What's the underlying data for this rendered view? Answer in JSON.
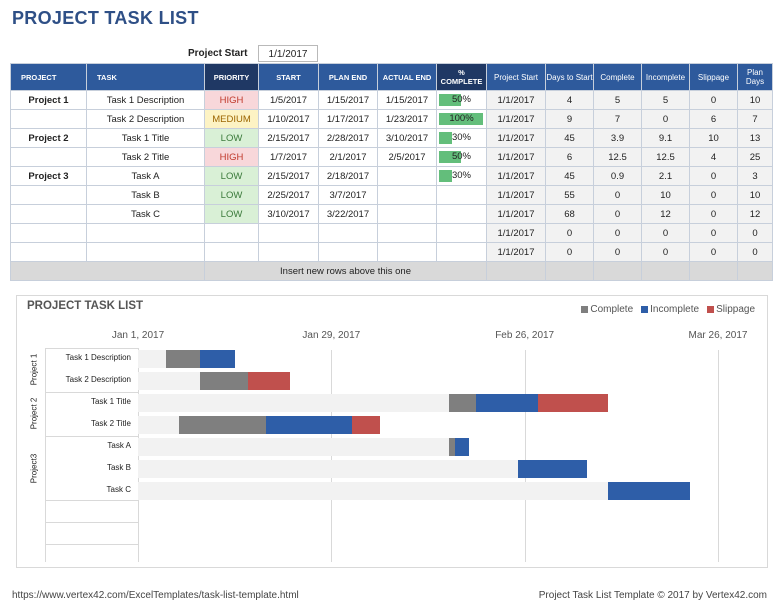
{
  "title": "PROJECT TASK LIST",
  "project_start": {
    "label": "Project Start",
    "value": "1/1/2017"
  },
  "table": {
    "headers": {
      "project": "PROJECT",
      "task": "TASK",
      "priority": "PRIORITY",
      "start": "START",
      "plan_end": "PLAN END",
      "actual_end": "ACTUAL END",
      "complete_pct_top": "%",
      "complete_pct_bottom": "COMPLETE",
      "proj_start": "Project Start",
      "days_to_start": "Days to Start",
      "complete": "Complete",
      "incomplete": "Incomplete",
      "slippage": "Slippage",
      "plan_days": "Plan Days"
    },
    "rows": [
      {
        "project": "Project 1",
        "task": "Task 1 Description",
        "priority": "HIGH",
        "start": "1/5/2017",
        "plan_end": "1/15/2017",
        "actual_end": "1/15/2017",
        "pct": "50%",
        "pct_value": 0.5,
        "proj_start": "1/1/2017",
        "days_to_start": "4",
        "complete": "5",
        "incomplete": "5",
        "slippage": "0",
        "plan_days": "10"
      },
      {
        "project": "",
        "task": "Task 2 Description",
        "priority": "MEDIUM",
        "start": "1/10/2017",
        "plan_end": "1/17/2017",
        "actual_end": "1/23/2017",
        "pct": "100%",
        "pct_value": 1.0,
        "proj_start": "1/1/2017",
        "days_to_start": "9",
        "complete": "7",
        "incomplete": "0",
        "slippage": "6",
        "plan_days": "7"
      },
      {
        "project": "Project 2",
        "task": "Task 1 Title",
        "priority": "LOW",
        "start": "2/15/2017",
        "plan_end": "2/28/2017",
        "actual_end": "3/10/2017",
        "pct": "30%",
        "pct_value": 0.3,
        "proj_start": "1/1/2017",
        "days_to_start": "45",
        "complete": "3.9",
        "incomplete": "9.1",
        "slippage": "10",
        "plan_days": "13"
      },
      {
        "project": "",
        "task": "Task 2 Title",
        "priority": "HIGH",
        "start": "1/7/2017",
        "plan_end": "2/1/2017",
        "actual_end": "2/5/2017",
        "pct": "50%",
        "pct_value": 0.5,
        "proj_start": "1/1/2017",
        "days_to_start": "6",
        "complete": "12.5",
        "incomplete": "12.5",
        "slippage": "4",
        "plan_days": "25"
      },
      {
        "project": "Project 3",
        "task": "Task A",
        "priority": "LOW",
        "start": "2/15/2017",
        "plan_end": "2/18/2017",
        "actual_end": "",
        "pct": "30%",
        "pct_value": 0.3,
        "proj_start": "1/1/2017",
        "days_to_start": "45",
        "complete": "0.9",
        "incomplete": "2.1",
        "slippage": "0",
        "plan_days": "3"
      },
      {
        "project": "",
        "task": "Task B",
        "priority": "LOW",
        "start": "2/25/2017",
        "plan_end": "3/7/2017",
        "actual_end": "",
        "pct": "",
        "pct_value": 0,
        "proj_start": "1/1/2017",
        "days_to_start": "55",
        "complete": "0",
        "incomplete": "10",
        "slippage": "0",
        "plan_days": "10"
      },
      {
        "project": "",
        "task": "Task C",
        "priority": "LOW",
        "start": "3/10/2017",
        "plan_end": "3/22/2017",
        "actual_end": "",
        "pct": "",
        "pct_value": 0,
        "proj_start": "1/1/2017",
        "days_to_start": "68",
        "complete": "0",
        "incomplete": "12",
        "slippage": "0",
        "plan_days": "12"
      },
      {
        "project": "",
        "task": "",
        "priority": "",
        "start": "",
        "plan_end": "",
        "actual_end": "",
        "pct": "",
        "pct_value": 0,
        "proj_start": "1/1/2017",
        "days_to_start": "0",
        "complete": "0",
        "incomplete": "0",
        "slippage": "0",
        "plan_days": "0"
      },
      {
        "project": "",
        "task": "",
        "priority": "",
        "start": "",
        "plan_end": "",
        "actual_end": "",
        "pct": "",
        "pct_value": 0,
        "proj_start": "1/1/2017",
        "days_to_start": "0",
        "complete": "0",
        "incomplete": "0",
        "slippage": "0",
        "plan_days": "0"
      }
    ],
    "insert_note": "Insert new rows above this one"
  },
  "chart_data": {
    "type": "bar",
    "orientation": "horizontal-stacked",
    "title": "PROJECT TASK LIST",
    "x_ticks": [
      "Jan 1, 2017",
      "Jan 29, 2017",
      "Feb 26, 2017",
      "Mar 26, 2017"
    ],
    "x_tick_days": [
      0,
      28,
      56,
      84
    ],
    "xlim": [
      0,
      84
    ],
    "groups": [
      "Project 1",
      "Project 2",
      "Project3"
    ],
    "categories": [
      "Task 1 Description",
      "Task 2 Description",
      "Task 1 Title",
      "Task 2 Title",
      "Task A",
      "Task B",
      "Task C"
    ],
    "category_group": [
      0,
      0,
      1,
      1,
      2,
      2,
      2
    ],
    "offset": [
      4,
      9,
      45,
      6,
      45,
      55,
      68
    ],
    "series": [
      {
        "name": "Complete",
        "color": "#7f7f7f",
        "values": [
          5,
          7,
          3.9,
          12.5,
          0.9,
          0,
          0
        ]
      },
      {
        "name": "Incomplete",
        "color": "#2e5ea8",
        "values": [
          5,
          0,
          9.1,
          12.5,
          2.1,
          10,
          12
        ]
      },
      {
        "name": "Slippage",
        "color": "#c0504d",
        "values": [
          0,
          6,
          10,
          4,
          0,
          0,
          0
        ]
      }
    ]
  },
  "footer": {
    "url": "https://www.vertex42.com/ExcelTemplates/task-list-template.html",
    "copyright": "Project Task List Template © 2017 by Vertex42.com"
  }
}
